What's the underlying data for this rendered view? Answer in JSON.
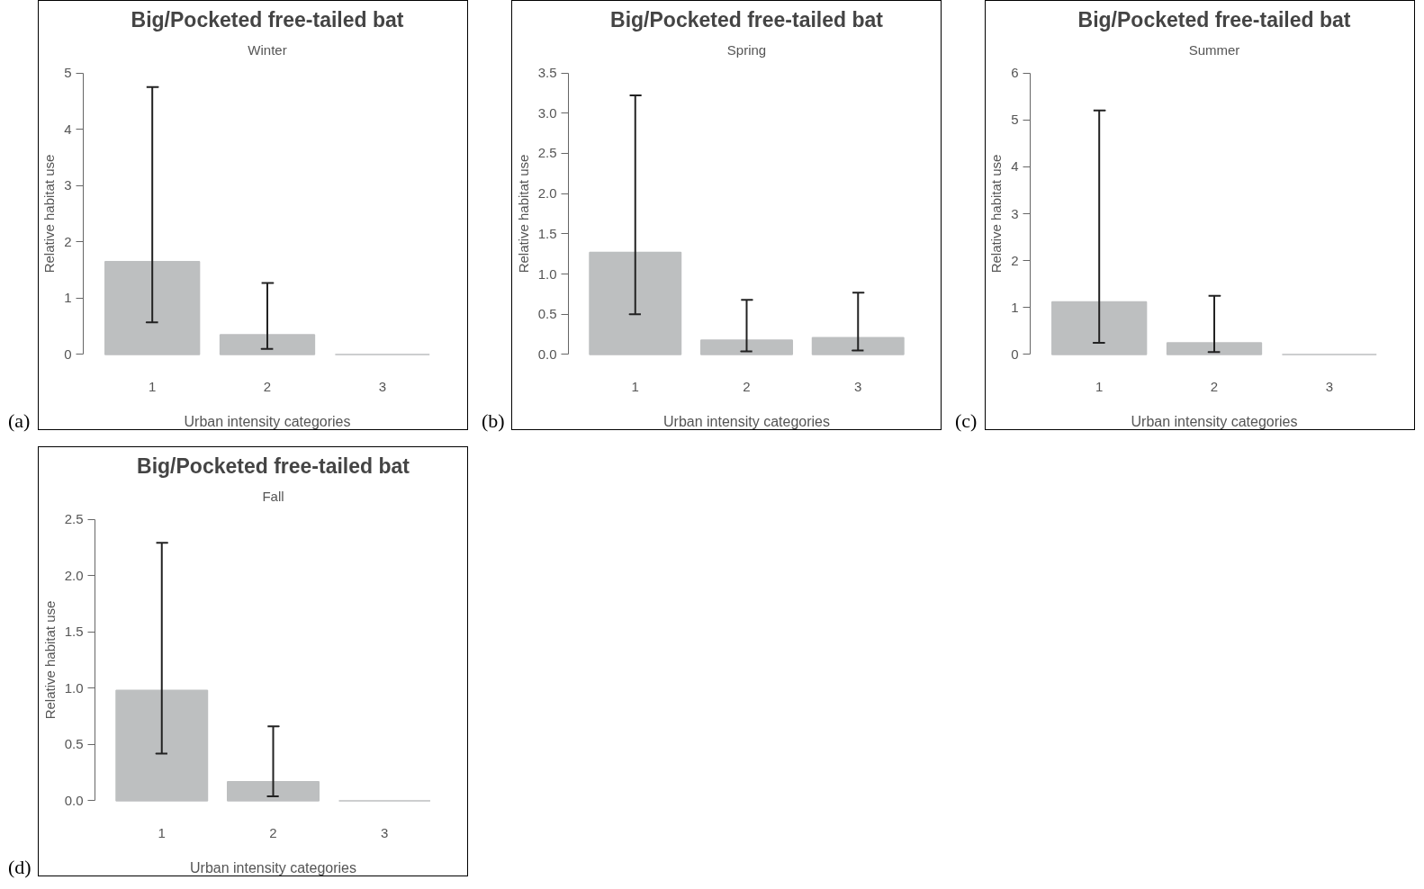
{
  "chart_data": [
    {
      "type": "bar",
      "title": "Big/Pocketed free-tailed bat",
      "subtitle": "Winter",
      "xlabel": "Urban intensity categories",
      "ylabel": "Relative habitat use",
      "categories": [
        "1",
        "2",
        "3"
      ],
      "values": [
        1.65,
        0.35,
        0
      ],
      "errors": [
        [
          0.57,
          4.75
        ],
        [
          0.1,
          1.27
        ],
        null
      ],
      "color": "#bdbfc0",
      "ylim": [
        0,
        5
      ],
      "yticks": [
        0,
        1,
        2,
        3,
        4,
        5
      ],
      "grid": false,
      "annotations": [
        "(a)"
      ]
    },
    {
      "type": "bar",
      "title": "Big/Pocketed free-tailed bat",
      "subtitle": "Spring",
      "xlabel": "Urban intensity categories",
      "ylabel": "Relative habitat use",
      "categories": [
        "1",
        "2",
        "3"
      ],
      "values": [
        1.27,
        0.18,
        0.21
      ],
      "errors": [
        [
          0.5,
          3.22
        ],
        [
          0.04,
          0.68
        ],
        [
          0.05,
          0.77
        ]
      ],
      "color": "#bdbfc0",
      "ylim": [
        0,
        3.5
      ],
      "yticks": [
        {
          "value": 0,
          "label": "0.0"
        },
        0.5,
        {
          "value": 1,
          "label": "1.0"
        },
        1.5,
        {
          "value": 2,
          "label": "2.0"
        },
        2.5,
        {
          "value": 3,
          "label": "3.0"
        },
        3.5
      ],
      "grid": false,
      "annotations": [
        "(b)"
      ]
    },
    {
      "type": "bar",
      "title": "Big/Pocketed free-tailed bat",
      "subtitle": "Summer",
      "xlabel": "Urban intensity categories",
      "ylabel": "Relative habitat use",
      "categories": [
        "1",
        "2",
        "3"
      ],
      "values": [
        1.12,
        0.25,
        0
      ],
      "errors": [
        [
          0.25,
          5.2
        ],
        [
          0.05,
          1.25
        ],
        null
      ],
      "color": "#bdbfc0",
      "ylim": [
        0,
        6
      ],
      "yticks": [
        0,
        1,
        2,
        3,
        4,
        5,
        6
      ],
      "grid": false,
      "annotations": [
        "(c)"
      ]
    },
    {
      "type": "bar",
      "title": "Big/Pocketed free-tailed bat",
      "subtitle": "Fall",
      "xlabel": "Urban intensity categories",
      "ylabel": "Relative habitat use",
      "categories": [
        "1",
        "2",
        "3"
      ],
      "values": [
        0.98,
        0.17,
        0
      ],
      "errors": [
        [
          0.42,
          2.29
        ],
        [
          0.04,
          0.66
        ],
        null
      ],
      "color": "#bdbfc0",
      "ylim": [
        0,
        2.5
      ],
      "yticks": [
        {
          "value": 0,
          "label": "0.0"
        },
        0.5,
        {
          "value": 1,
          "label": "1.0"
        },
        1.5,
        {
          "value": 2,
          "label": "2.0"
        },
        2.5
      ],
      "grid": false,
      "annotations": [
        "(d)"
      ]
    }
  ]
}
